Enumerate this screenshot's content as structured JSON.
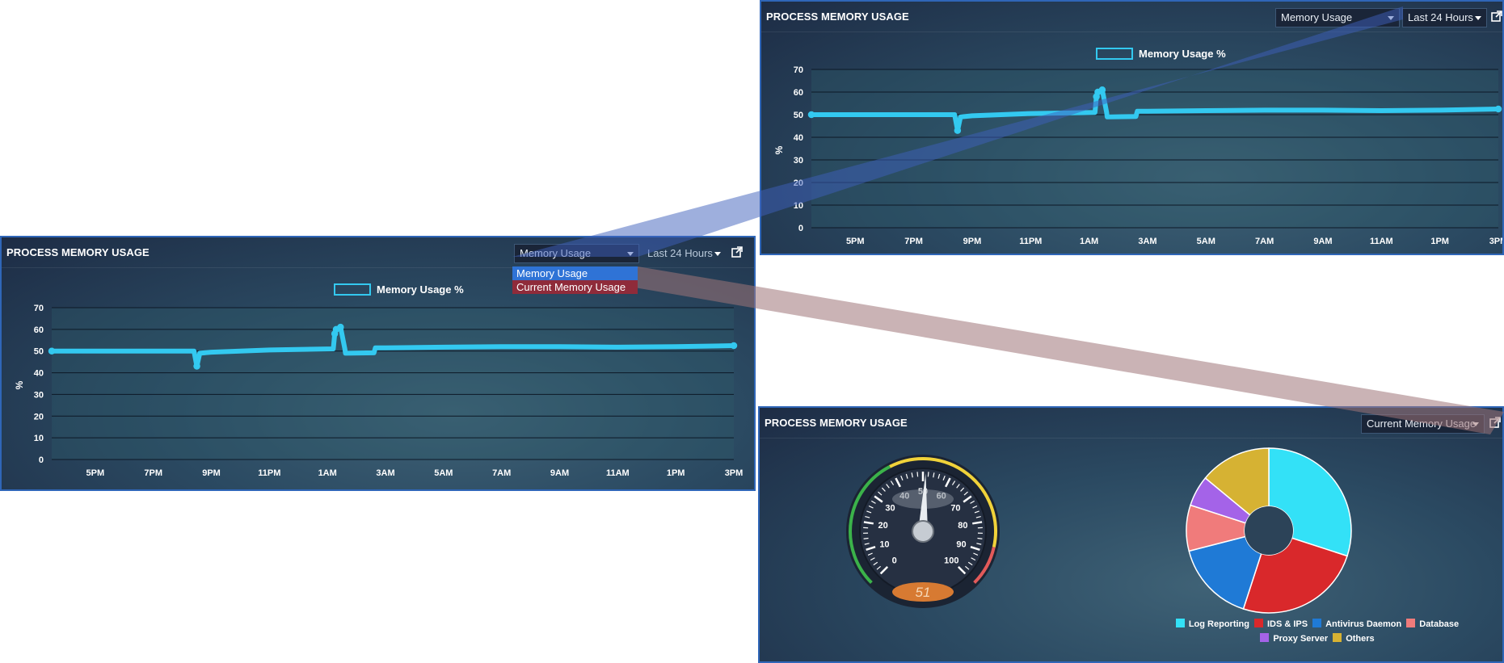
{
  "left_panel": {
    "title": "PROCESS MEMORY USAGE",
    "metric_select": "Memory Usage",
    "range_select": "Last 24 Hours",
    "dropdown_options": [
      "Memory Usage",
      "Current Memory Usage"
    ]
  },
  "top_panel": {
    "title": "PROCESS MEMORY USAGE",
    "metric_select": "Memory Usage",
    "range_select": "Last 24 Hours"
  },
  "bottom_panel": {
    "title": "PROCESS MEMORY USAGE",
    "metric_select": "Current Memory Usage"
  },
  "icons": {
    "external": "external-link-icon",
    "caret": "caret-down-icon"
  },
  "colors": {
    "line": "#33c9f0",
    "panel_border": "#2f66b8",
    "dropdown_selected": "#2f73d6",
    "dropdown_alt": "#8f2b3a",
    "connector_blue": "#5777c6",
    "connector_red": "#9e7478"
  },
  "chart_data": [
    {
      "type": "line",
      "legend": "Memory Usage %",
      "ylabel": "%",
      "ylim": [
        0,
        70
      ],
      "yticks": [
        0,
        10,
        20,
        30,
        40,
        50,
        60,
        70
      ],
      "xticks": [
        "5PM",
        "7PM",
        "9PM",
        "11PM",
        "1AM",
        "3AM",
        "5AM",
        "7AM",
        "9AM",
        "11AM",
        "1PM",
        "3PM"
      ],
      "x_range_hours": [
        15.5,
        39
      ],
      "series": [
        {
          "name": "Memory Usage %",
          "x": [
            15.5,
            17,
            19,
            20.4,
            20.5,
            20.6,
            21,
            23,
            25.2,
            25.25,
            25.3,
            25.45,
            25.6,
            25.62,
            26.6,
            26.65,
            27,
            29,
            31,
            33,
            35,
            37,
            39
          ],
          "values": [
            50,
            50,
            50,
            50,
            43,
            49,
            49.5,
            50.5,
            51,
            58,
            60,
            61,
            51,
            49,
            49.2,
            51.5,
            51.5,
            51.8,
            52,
            52,
            51.8,
            52,
            52.5
          ]
        }
      ]
    },
    {
      "type": "gauge",
      "value": 51,
      "min": 0,
      "max": 100,
      "ticks": [
        0,
        10,
        20,
        30,
        40,
        50,
        60,
        70,
        80,
        90,
        100
      ]
    },
    {
      "type": "pie",
      "labels": [
        "Log Reporting",
        "IDS & IPS",
        "Antivirus Daemon",
        "Database",
        "Proxy Server",
        "Others"
      ],
      "values": [
        30,
        25,
        16,
        9,
        6,
        14
      ],
      "colors": [
        "#33e1f7",
        "#d9282b",
        "#1f7ad6",
        "#f07b7b",
        "#a463e8",
        "#d6b233"
      ]
    }
  ]
}
